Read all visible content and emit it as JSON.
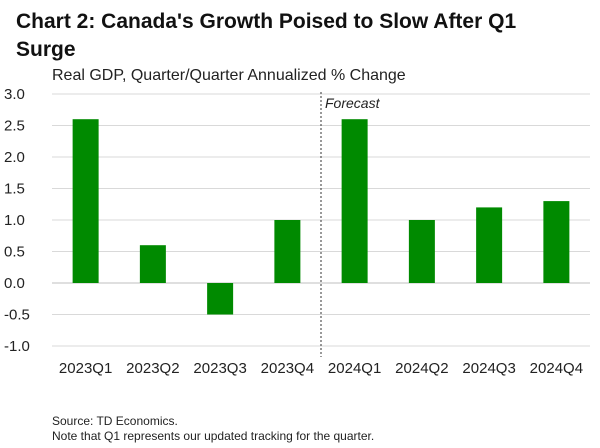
{
  "chart_data": {
    "type": "bar",
    "title": "Chart 2: Canada's Growth Poised to Slow After Q1 Surge",
    "subtitle": "Real GDP, Quarter/Quarter Annualized % Change",
    "categories": [
      "2023Q1",
      "2023Q2",
      "2023Q3",
      "2023Q4",
      "2024Q1",
      "2024Q2",
      "2024Q3",
      "2024Q4"
    ],
    "values": [
      2.6,
      0.6,
      -0.5,
      1.0,
      2.6,
      1.0,
      1.2,
      1.3
    ],
    "ylim": [
      -1.0,
      3.0
    ],
    "yticks": [
      "3.0",
      "2.5",
      "2.0",
      "1.5",
      "1.0",
      "0.5",
      "0.0",
      "-0.5",
      "-1.0"
    ],
    "ytick_values": [
      3.0,
      2.5,
      2.0,
      1.5,
      1.0,
      0.5,
      0.0,
      -0.5,
      -1.0
    ],
    "grid": true,
    "xlabel": "",
    "ylabel": "",
    "bar_color": "#008a00",
    "annotation": {
      "text": "Forecast",
      "divider_between": [
        "2023Q4",
        "2024Q1"
      ]
    }
  },
  "footer": {
    "source": "Source: TD Economics.",
    "note": "Note that Q1 represents our updated tracking for the quarter."
  }
}
